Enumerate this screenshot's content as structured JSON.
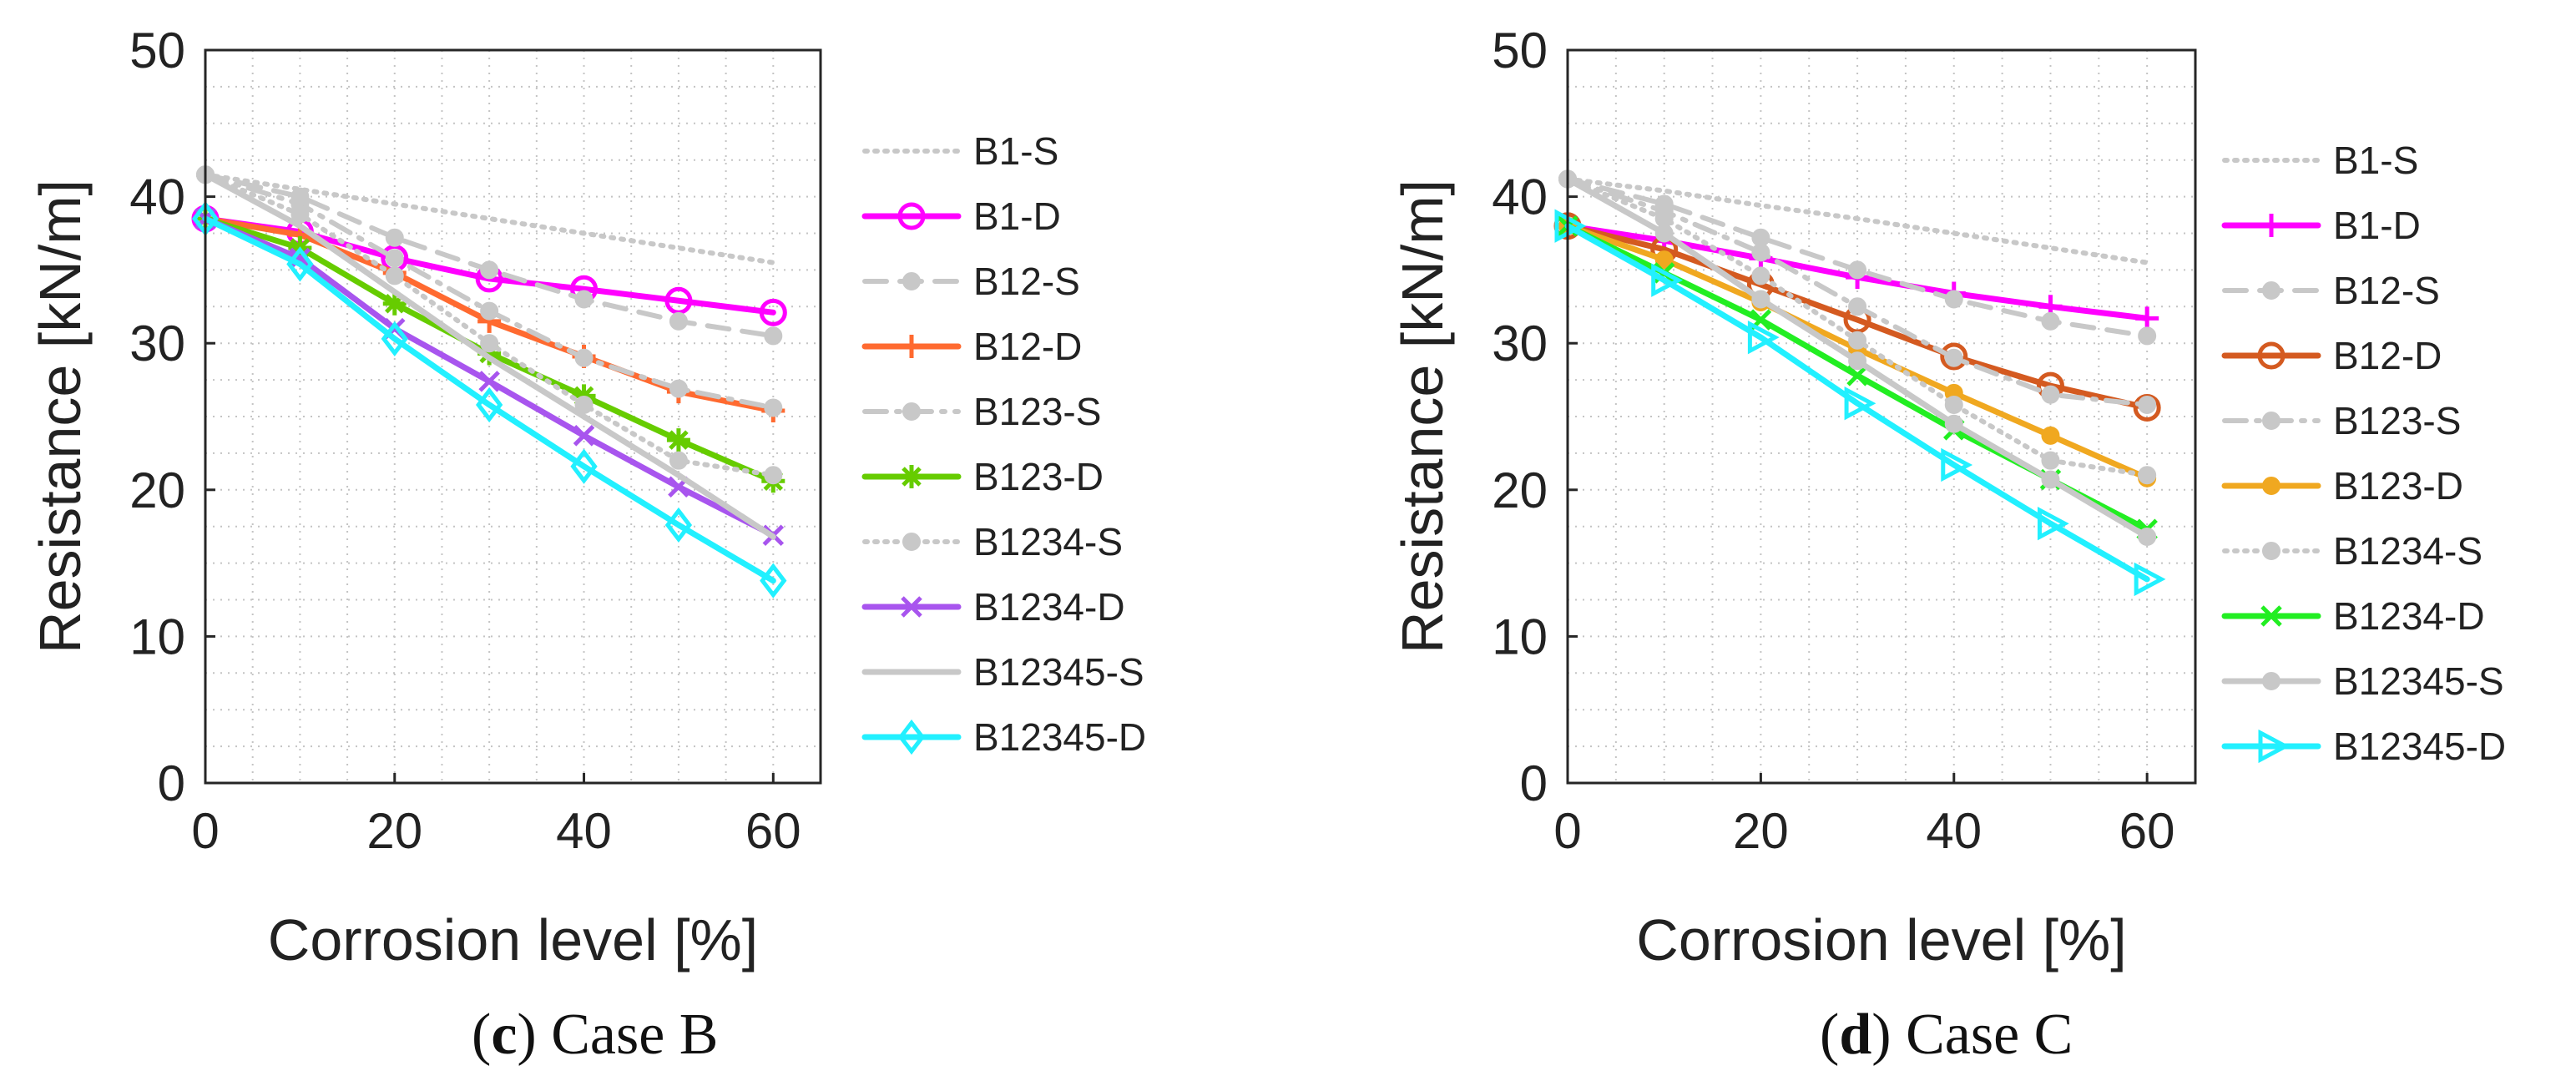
{
  "figure": {
    "panels": [
      {
        "caption_letter": "c",
        "caption_text": "Case B"
      },
      {
        "caption_letter": "d",
        "caption_text": "Case C"
      }
    ]
  },
  "chart_data": [
    {
      "type": "line",
      "panel": "(c) Case B",
      "xlabel": "Corrosion level [%]",
      "ylabel": "Resistance [kN/m]",
      "xlim": [
        0,
        65
      ],
      "ylim": [
        0,
        50
      ],
      "xticks": [
        0,
        20,
        40,
        60
      ],
      "yticks": [
        0,
        10,
        20,
        30,
        40,
        50
      ],
      "grid": true,
      "legend_position": "outside-right",
      "x": [
        0,
        10,
        20,
        30,
        40,
        50,
        60
      ],
      "series": [
        {
          "name": "B1-S",
          "style": "dotted",
          "marker": "none",
          "color": "#c8c8c8",
          "values": [
            41.5,
            40.5,
            39.5,
            38.5,
            37.5,
            36.5,
            35.5
          ]
        },
        {
          "name": "B1-D",
          "style": "solid",
          "marker": "circle",
          "color": "#ff00ff",
          "values": [
            38.5,
            37.6,
            35.8,
            34.4,
            33.7,
            32.9,
            32.1
          ]
        },
        {
          "name": "B12-S",
          "style": "dashed",
          "marker": "dot",
          "color": "#c8c8c8",
          "values": [
            41.5,
            40.0,
            37.2,
            35.0,
            33.0,
            31.5,
            30.5
          ]
        },
        {
          "name": "B12-D",
          "style": "solid",
          "marker": "plus",
          "color": "#ff6a30",
          "values": [
            38.5,
            37.4,
            34.8,
            31.5,
            29.1,
            26.7,
            25.4
          ]
        },
        {
          "name": "B123-S",
          "style": "dashdot",
          "marker": "dot",
          "color": "#c8c8c8",
          "values": [
            41.5,
            39.5,
            35.8,
            32.2,
            29.0,
            26.9,
            25.6
          ]
        },
        {
          "name": "B123-D",
          "style": "solid",
          "marker": "asterisk",
          "color": "#66cc00",
          "values": [
            38.5,
            36.5,
            32.7,
            29.3,
            26.4,
            23.4,
            20.6
          ]
        },
        {
          "name": "B1234-S",
          "style": "dotted",
          "marker": "dot",
          "color": "#c8c8c8",
          "values": [
            41.5,
            38.8,
            34.6,
            30.0,
            25.8,
            22.0,
            21.0
          ]
        },
        {
          "name": "B1234-D",
          "style": "solid",
          "marker": "x",
          "color": "#a855ee",
          "values": [
            38.5,
            35.8,
            31.0,
            27.4,
            23.7,
            20.2,
            16.9
          ]
        },
        {
          "name": "B12345-S",
          "style": "solid",
          "marker": "none",
          "color": "#c8c8c8",
          "values": [
            41.5,
            38.0,
            33.5,
            29.0,
            25.0,
            21.0,
            16.8
          ]
        },
        {
          "name": "B12345-D",
          "style": "solid",
          "marker": "diamond",
          "color": "#22f0ff",
          "values": [
            38.5,
            35.4,
            30.3,
            25.8,
            21.6,
            17.6,
            13.8
          ]
        }
      ]
    },
    {
      "type": "line",
      "panel": "(d) Case C",
      "xlabel": "Corrosion level [%]",
      "ylabel": "Resistance [kN/m]",
      "xlim": [
        0,
        65
      ],
      "ylim": [
        0,
        50
      ],
      "xticks": [
        0,
        20,
        40,
        60
      ],
      "yticks": [
        0,
        10,
        20,
        30,
        40,
        50
      ],
      "grid": true,
      "legend_position": "outside-right",
      "x": [
        0,
        10,
        20,
        30,
        40,
        50,
        60
      ],
      "series": [
        {
          "name": "B1-S",
          "style": "dotted",
          "marker": "none",
          "color": "#c8c8c8",
          "values": [
            41.2,
            40.4,
            39.4,
            38.5,
            37.5,
            36.5,
            35.5
          ]
        },
        {
          "name": "B1-D",
          "style": "solid",
          "marker": "plus",
          "color": "#ff00ff",
          "values": [
            38.0,
            37.0,
            35.8,
            34.5,
            33.4,
            32.5,
            31.7
          ]
        },
        {
          "name": "B12-S",
          "style": "dashed",
          "marker": "dot",
          "color": "#c8c8c8",
          "values": [
            41.2,
            39.5,
            37.2,
            35.0,
            33.0,
            31.5,
            30.5
          ]
        },
        {
          "name": "B12-D",
          "style": "solid",
          "marker": "circle",
          "color": "#d45a20",
          "values": [
            38.0,
            36.4,
            34.0,
            31.6,
            29.1,
            27.1,
            25.6
          ]
        },
        {
          "name": "B123-S",
          "style": "dashdot",
          "marker": "dot",
          "color": "#c8c8c8",
          "values": [
            41.2,
            39.0,
            36.2,
            32.5,
            29.0,
            26.5,
            25.8
          ]
        },
        {
          "name": "B123-D",
          "style": "solid",
          "marker": "dot",
          "color": "#f0a820",
          "values": [
            38.0,
            35.7,
            32.8,
            29.6,
            26.6,
            23.7,
            20.8
          ]
        },
        {
          "name": "B1234-S",
          "style": "dotted",
          "marker": "dot",
          "color": "#c8c8c8",
          "values": [
            41.2,
            38.5,
            34.6,
            30.2,
            25.8,
            22.0,
            21.0
          ]
        },
        {
          "name": "B1234-D",
          "style": "solid",
          "marker": "x",
          "color": "#22ee22",
          "values": [
            38.0,
            34.8,
            31.6,
            27.8,
            24.1,
            20.7,
            17.3
          ]
        },
        {
          "name": "B12345-S",
          "style": "solid",
          "marker": "dot",
          "color": "#c8c8c8",
          "values": [
            41.2,
            37.5,
            33.0,
            28.8,
            24.5,
            20.7,
            16.8
          ]
        },
        {
          "name": "B12345-D",
          "style": "solid",
          "marker": "triangle-right",
          "color": "#22f0ff",
          "values": [
            38.0,
            34.3,
            30.4,
            25.9,
            21.7,
            17.7,
            13.9
          ]
        }
      ]
    }
  ]
}
